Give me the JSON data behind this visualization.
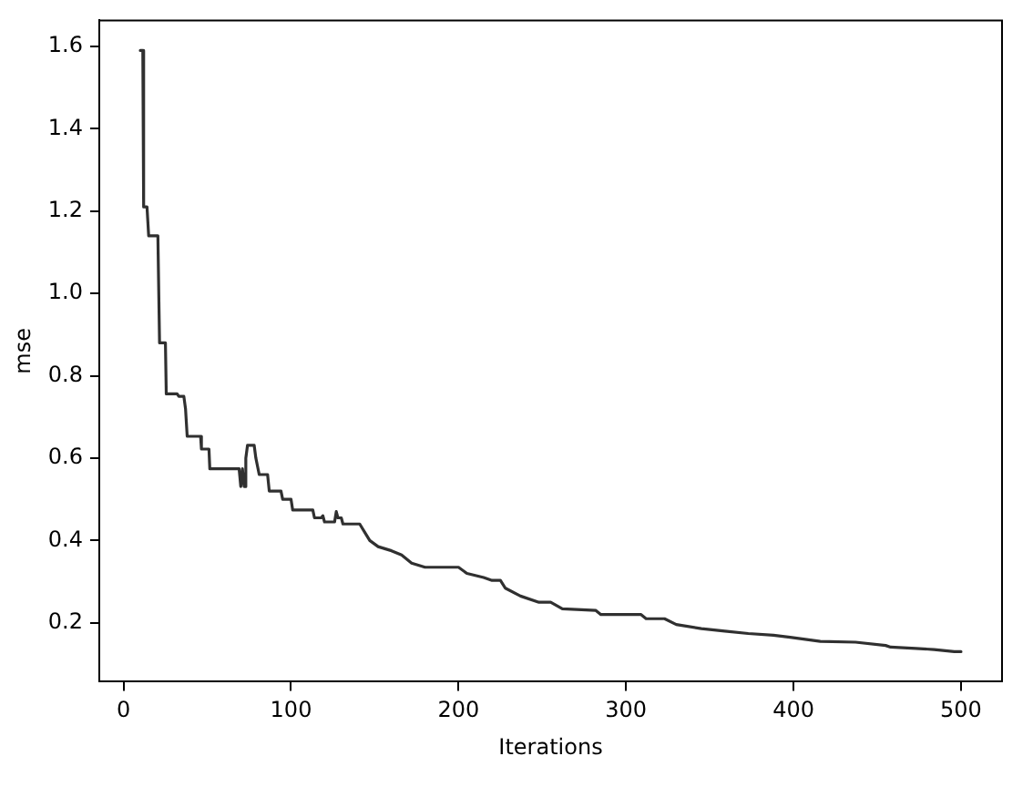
{
  "chart_data": {
    "type": "line",
    "xlabel": "Iterations",
    "ylabel": "mse",
    "xlim": [
      -14.5,
      524.5
    ],
    "xticks": [
      0,
      100,
      200,
      300,
      400,
      500
    ],
    "ylim": [
      0.057,
      1.663
    ],
    "yticks": [
      0.2,
      0.4,
      0.6,
      0.8,
      {
        "value": 1,
        "label": "1.0"
      },
      1.2,
      1.4,
      1.6
    ],
    "grid": false,
    "legend": false,
    "marker": "none",
    "line_style": "solid",
    "series": [
      {
        "color": "#303030",
        "x": [
          10,
          11.5,
          12,
          14,
          15,
          20.5,
          21.5,
          25,
          25.5,
          32,
          33,
          36,
          37,
          38,
          46,
          46.5,
          51,
          51.5,
          69,
          70,
          71,
          72,
          73,
          74,
          78,
          79,
          81,
          86,
          87,
          94,
          95,
          100,
          101,
          113,
          114,
          118,
          119,
          120,
          126,
          127,
          128,
          130,
          131,
          141,
          144,
          147,
          152,
          160,
          166,
          172,
          180,
          200,
          205,
          215,
          220,
          225,
          228,
          237,
          248,
          255,
          262,
          282,
          285,
          309,
          312,
          323,
          330,
          345,
          359,
          373,
          388,
          398,
          409,
          416,
          437,
          455,
          458,
          473,
          484,
          496,
          500
        ],
        "values": [
          1.59,
          1.59,
          1.21,
          1.21,
          1.14,
          1.14,
          0.88,
          0.88,
          0.756,
          0.756,
          0.75,
          0.75,
          0.72,
          0.653,
          0.653,
          0.622,
          0.622,
          0.574,
          0.574,
          0.531,
          0.574,
          0.531,
          0.6,
          0.631,
          0.631,
          0.6,
          0.56,
          0.56,
          0.52,
          0.52,
          0.5,
          0.5,
          0.474,
          0.474,
          0.455,
          0.455,
          0.46,
          0.445,
          0.445,
          0.47,
          0.455,
          0.455,
          0.44,
          0.44,
          0.42,
          0.4,
          0.385,
          0.375,
          0.365,
          0.345,
          0.335,
          0.335,
          0.32,
          0.31,
          0.303,
          0.303,
          0.284,
          0.265,
          0.25,
          0.25,
          0.234,
          0.23,
          0.22,
          0.22,
          0.21,
          0.21,
          0.196,
          0.186,
          0.18,
          0.174,
          0.17,
          0.165,
          0.159,
          0.155,
          0.153,
          0.145,
          0.141,
          0.138,
          0.135,
          0.13,
          0.13
        ]
      }
    ]
  }
}
